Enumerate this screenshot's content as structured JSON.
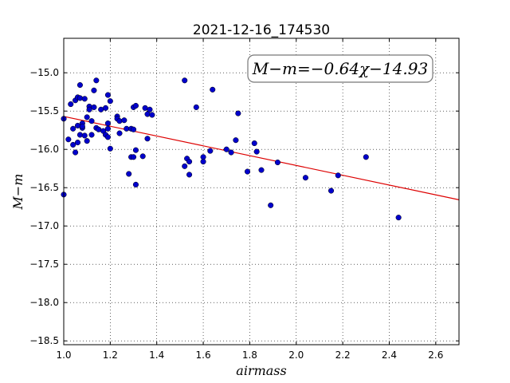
{
  "chart_data": {
    "type": "scatter",
    "title": "2021-12-16_174530",
    "xlabel": "airmass",
    "ylabel": "M−m",
    "xlim": [
      1.0,
      2.7
    ],
    "ylim": [
      -18.55,
      -14.55
    ],
    "y_inverted": false,
    "grid": true,
    "x_ticks": [
      1.0,
      1.2,
      1.4,
      1.6,
      1.8,
      2.0,
      2.2,
      2.4,
      2.6
    ],
    "x_tick_labels": [
      "1.0",
      "1.2",
      "1.4",
      "1.6",
      "1.8",
      "2.0",
      "2.2",
      "2.4",
      "2.6"
    ],
    "y_ticks": [
      -15.0,
      -15.5,
      -16.0,
      -16.5,
      -17.0,
      -17.5,
      -18.0,
      -18.5
    ],
    "y_tick_labels": [
      "−15.0",
      "−15.5",
      "−16.0",
      "−16.5",
      "−17.0",
      "−17.5",
      "−18.0",
      "−18.5"
    ],
    "annotation": "M−m=−0.64χ−14.93",
    "point_color": "#0000cc",
    "fit_color": "#dd0000",
    "fit": {
      "slope": -0.64,
      "intercept": -14.93
    },
    "series": [
      {
        "x": [
          1.0,
          1.0,
          1.02,
          1.03,
          1.04,
          1.04,
          1.05,
          1.05,
          1.06,
          1.06,
          1.06,
          1.07,
          1.07,
          1.07,
          1.08,
          1.08,
          1.08,
          1.09,
          1.09,
          1.1,
          1.1,
          1.11,
          1.11,
          1.12,
          1.12,
          1.13,
          1.13,
          1.14,
          1.14,
          1.15,
          1.16,
          1.17,
          1.18,
          1.18,
          1.19,
          1.19,
          1.19,
          1.19,
          1.2,
          1.2,
          1.23,
          1.23,
          1.24,
          1.24,
          1.26,
          1.27,
          1.28,
          1.29,
          1.29,
          1.3,
          1.3,
          1.3,
          1.31,
          1.31,
          1.31,
          1.34,
          1.35,
          1.36,
          1.36,
          1.37,
          1.38,
          1.52,
          1.52,
          1.53,
          1.54,
          1.54,
          1.57,
          1.6,
          1.6,
          1.63,
          1.64,
          1.7,
          1.72,
          1.74,
          1.75,
          1.79,
          1.82,
          1.83,
          1.85,
          1.89,
          1.92,
          2.04,
          2.15,
          2.18,
          2.3,
          2.44
        ],
        "y": [
          -15.6,
          -16.59,
          -15.87,
          -15.41,
          -15.73,
          -15.94,
          -15.36,
          -16.04,
          -15.32,
          -15.91,
          -15.69,
          -15.16,
          -15.33,
          -15.81,
          -15.66,
          -15.72,
          -15.7,
          -15.34,
          -15.82,
          -15.58,
          -15.89,
          -15.44,
          -15.48,
          -15.63,
          -15.81,
          -15.23,
          -15.45,
          -15.1,
          -15.72,
          -15.74,
          -15.48,
          -15.76,
          -15.46,
          -15.81,
          -15.29,
          -15.66,
          -15.84,
          -15.73,
          -15.37,
          -15.99,
          -15.57,
          -15.6,
          -15.63,
          -15.79,
          -15.62,
          -15.73,
          -16.32,
          -15.73,
          -16.1,
          -15.45,
          -15.74,
          -16.1,
          -15.43,
          -16.01,
          -16.46,
          -16.09,
          -15.46,
          -15.54,
          -15.86,
          -15.48,
          -15.55,
          -15.1,
          -16.22,
          -16.12,
          -16.16,
          -16.33,
          -15.45,
          -16.1,
          -16.16,
          -16.02,
          -15.22,
          -16.0,
          -16.04,
          -15.88,
          -15.53,
          -16.29,
          -15.92,
          -16.03,
          -16.27,
          -16.73,
          -16.17,
          -16.37,
          -16.54,
          -16.34,
          -16.1,
          -16.89
        ]
      }
    ]
  }
}
